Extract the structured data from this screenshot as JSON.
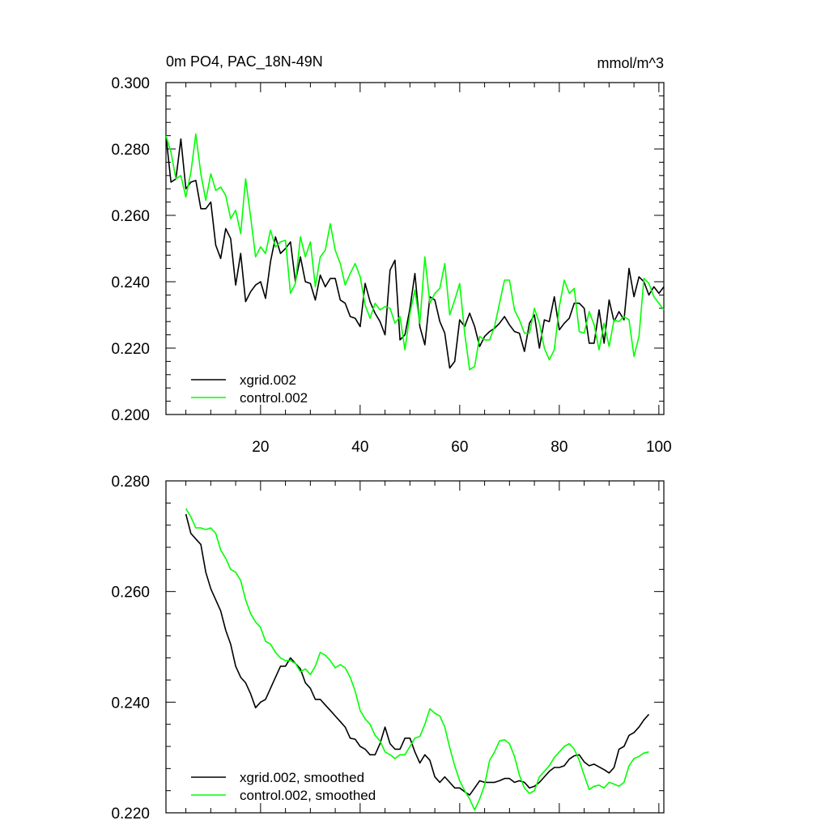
{
  "chart_data": [
    {
      "type": "line",
      "title": "0m PO4, PAC_18N-49N",
      "units": "mmol/m^3",
      "xlim": [
        1,
        101
      ],
      "ylim": [
        0.2,
        0.3
      ],
      "xticks": [
        "20",
        "40",
        "60",
        "80",
        "100"
      ],
      "yticks": [
        "0.200",
        "0.220",
        "0.240",
        "0.260",
        "0.280",
        "0.300"
      ],
      "legend_position": "bottom-left",
      "series": [
        {
          "name": "xgrid.002",
          "color": "#000000",
          "x": [
            1,
            2,
            3,
            4,
            5,
            6,
            7,
            8,
            9,
            10,
            11,
            12,
            13,
            14,
            15,
            16,
            17,
            18,
            19,
            20,
            21,
            22,
            23,
            24,
            25,
            26,
            27,
            28,
            29,
            30,
            31,
            32,
            33,
            34,
            35,
            36,
            37,
            38,
            39,
            40,
            41,
            42,
            43,
            44,
            45,
            46,
            47,
            48,
            49,
            50,
            51,
            52,
            53,
            54,
            55,
            56,
            57,
            58,
            59,
            60,
            61,
            62,
            63,
            64,
            65,
            66,
            67,
            68,
            69,
            70,
            71,
            72,
            73,
            74,
            75,
            76,
            77,
            78,
            79,
            80,
            81,
            82,
            83,
            84,
            85,
            86,
            87,
            88,
            89,
            90,
            91,
            92,
            93,
            94,
            95,
            96,
            97,
            98,
            99,
            100,
            101
          ],
          "y": [
            0.284,
            0.27,
            0.271,
            0.283,
            0.268,
            0.27,
            0.2705,
            0.262,
            0.262,
            0.264,
            0.251,
            0.247,
            0.256,
            0.253,
            0.239,
            0.2485,
            0.234,
            0.237,
            0.239,
            0.24,
            0.235,
            0.246,
            0.2535,
            0.2485,
            0.25,
            0.252,
            0.24,
            0.2475,
            0.24,
            0.2395,
            0.2345,
            0.242,
            0.2385,
            0.241,
            0.241,
            0.2345,
            0.2335,
            0.2295,
            0.229,
            0.2265,
            0.2395,
            0.234,
            0.2305,
            0.228,
            0.224,
            0.2435,
            0.2465,
            0.2225,
            0.224,
            0.232,
            0.2425,
            0.2265,
            0.221,
            0.2355,
            0.2345,
            0.228,
            0.2245,
            0.214,
            0.216,
            0.2285,
            0.2265,
            0.2305,
            0.2265,
            0.2205,
            0.2235,
            0.225,
            0.226,
            0.2275,
            0.2295,
            0.227,
            0.225,
            0.2245,
            0.219,
            0.2275,
            0.23,
            0.22,
            0.2285,
            0.228,
            0.2355,
            0.2255,
            0.2275,
            0.229,
            0.2335,
            0.2335,
            0.232,
            0.2215,
            0.2215,
            0.2315,
            0.2215,
            0.2345,
            0.228,
            0.231,
            0.2285,
            0.244,
            0.2355,
            0.2415,
            0.24,
            0.236,
            0.2385,
            0.2365,
            0.2385
          ]
        },
        {
          "name": "control.002",
          "color": "#00ff00",
          "x": [
            1,
            2,
            3,
            4,
            5,
            6,
            7,
            8,
            9,
            10,
            11,
            12,
            13,
            14,
            15,
            16,
            17,
            18,
            19,
            20,
            21,
            22,
            23,
            24,
            25,
            26,
            27,
            28,
            29,
            30,
            31,
            32,
            33,
            34,
            35,
            36,
            37,
            38,
            39,
            40,
            41,
            42,
            43,
            44,
            45,
            46,
            47,
            48,
            49,
            50,
            51,
            52,
            53,
            54,
            55,
            56,
            57,
            58,
            59,
            60,
            61,
            62,
            63,
            64,
            65,
            66,
            67,
            68,
            69,
            70,
            71,
            72,
            73,
            74,
            75,
            76,
            77,
            78,
            79,
            80,
            81,
            82,
            83,
            84,
            85,
            86,
            87,
            88,
            89,
            90,
            91,
            92,
            93,
            94,
            95,
            96,
            97,
            98,
            99,
            100,
            101
          ],
          "y": [
            0.284,
            0.279,
            0.271,
            0.272,
            0.2655,
            0.273,
            0.2845,
            0.2725,
            0.2645,
            0.2725,
            0.2675,
            0.2685,
            0.266,
            0.259,
            0.2615,
            0.2545,
            0.271,
            0.2595,
            0.2475,
            0.2505,
            0.2485,
            0.2555,
            0.2505,
            0.252,
            0.2525,
            0.2365,
            0.2395,
            0.2535,
            0.2475,
            0.252,
            0.2385,
            0.2475,
            0.2495,
            0.2575,
            0.2495,
            0.2455,
            0.239,
            0.2425,
            0.2455,
            0.2415,
            0.233,
            0.229,
            0.2335,
            0.2315,
            0.2325,
            0.232,
            0.2275,
            0.2295,
            0.2195,
            0.2305,
            0.2375,
            0.2275,
            0.2475,
            0.2335,
            0.2365,
            0.238,
            0.2455,
            0.23,
            0.2345,
            0.2395,
            0.2245,
            0.2135,
            0.2145,
            0.2235,
            0.2225,
            0.2225,
            0.2265,
            0.2335,
            0.2405,
            0.2405,
            0.2315,
            0.2285,
            0.2245,
            0.2245,
            0.232,
            0.2275,
            0.22,
            0.2165,
            0.2195,
            0.2325,
            0.2405,
            0.2365,
            0.238,
            0.225,
            0.2245,
            0.231,
            0.227,
            0.2195,
            0.2275,
            0.2205,
            0.2285,
            0.228,
            0.2295,
            0.2285,
            0.2175,
            0.2235,
            0.241,
            0.2395,
            0.2355,
            0.2335,
            0.2315
          ]
        }
      ]
    },
    {
      "type": "line",
      "title": "",
      "xlim": [
        1,
        101
      ],
      "ylim": [
        0.22,
        0.28
      ],
      "yticks": [
        "0.220",
        "0.240",
        "0.260",
        "0.280"
      ],
      "legend_position": "bottom-left",
      "series": [
        {
          "name": "xgrid.002, smoothed",
          "color": "#000000",
          "x": [
            5,
            6,
            7,
            8,
            9,
            10,
            11,
            12,
            13,
            14,
            15,
            16,
            17,
            18,
            19,
            20,
            21,
            22,
            23,
            24,
            25,
            26,
            27,
            28,
            29,
            30,
            31,
            32,
            33,
            34,
            35,
            36,
            37,
            38,
            39,
            40,
            41,
            42,
            43,
            44,
            45,
            46,
            47,
            48,
            49,
            50,
            51,
            52,
            53,
            54,
            55,
            56,
            57,
            58,
            59,
            60,
            61,
            62,
            63,
            64,
            65,
            66,
            67,
            68,
            69,
            70,
            71,
            72,
            73,
            74,
            75,
            76,
            77,
            78,
            79,
            80,
            81,
            82,
            83,
            84,
            85,
            86,
            87,
            88,
            89,
            90,
            91,
            92,
            93,
            94,
            95,
            96,
            97,
            98
          ],
          "y": [
            0.274,
            0.2705,
            0.2695,
            0.2685,
            0.2635,
            0.2605,
            0.2585,
            0.2565,
            0.253,
            0.2505,
            0.2465,
            0.2445,
            0.2435,
            0.2415,
            0.239,
            0.24,
            0.2405,
            0.2425,
            0.2445,
            0.2465,
            0.2465,
            0.248,
            0.247,
            0.246,
            0.2435,
            0.2425,
            0.2405,
            0.2405,
            0.2395,
            0.2385,
            0.2375,
            0.2365,
            0.2355,
            0.2335,
            0.2333,
            0.232,
            0.2315,
            0.2305,
            0.2305,
            0.2325,
            0.2355,
            0.2325,
            0.2315,
            0.2315,
            0.2335,
            0.2335,
            0.231,
            0.229,
            0.2305,
            0.2295,
            0.2265,
            0.2255,
            0.2265,
            0.2255,
            0.2245,
            0.2245,
            0.2238,
            0.2232,
            0.2245,
            0.2258,
            0.2255,
            0.2255,
            0.2255,
            0.2258,
            0.2262,
            0.2262,
            0.2255,
            0.2258,
            0.2255,
            0.2245,
            0.2248,
            0.2255,
            0.2265,
            0.2275,
            0.2282,
            0.2282,
            0.2285,
            0.2297,
            0.2303,
            0.2305,
            0.2292,
            0.2285,
            0.2288,
            0.2283,
            0.2278,
            0.2272,
            0.2282,
            0.2315,
            0.232,
            0.234,
            0.2345,
            0.2355,
            0.2368,
            0.2378
          ]
        },
        {
          "name": "control.002, smoothed",
          "color": "#00ff00",
          "x": [
            5,
            6,
            7,
            8,
            9,
            10,
            11,
            12,
            13,
            14,
            15,
            16,
            17,
            18,
            19,
            20,
            21,
            22,
            23,
            24,
            25,
            26,
            27,
            28,
            29,
            30,
            31,
            32,
            33,
            34,
            35,
            36,
            37,
            38,
            39,
            40,
            41,
            42,
            43,
            44,
            45,
            46,
            47,
            48,
            49,
            50,
            51,
            52,
            53,
            54,
            55,
            56,
            57,
            58,
            59,
            60,
            61,
            62,
            63,
            64,
            65,
            66,
            67,
            68,
            69,
            70,
            71,
            72,
            73,
            74,
            75,
            76,
            77,
            78,
            79,
            80,
            81,
            82,
            83,
            84,
            85,
            86,
            87,
            88,
            89,
            90,
            91,
            92,
            93,
            94,
            95,
            96,
            97,
            98
          ],
          "y": [
            0.275,
            0.2735,
            0.2715,
            0.2715,
            0.2712,
            0.2715,
            0.2705,
            0.2675,
            0.266,
            0.264,
            0.2635,
            0.262,
            0.2585,
            0.256,
            0.2545,
            0.2535,
            0.251,
            0.2505,
            0.249,
            0.248,
            0.2475,
            0.2475,
            0.247,
            0.2455,
            0.246,
            0.245,
            0.2465,
            0.249,
            0.2485,
            0.2475,
            0.2462,
            0.2468,
            0.2462,
            0.2445,
            0.242,
            0.2385,
            0.237,
            0.236,
            0.234,
            0.233,
            0.231,
            0.2305,
            0.2298,
            0.2305,
            0.2305,
            0.232,
            0.2335,
            0.2338,
            0.236,
            0.2388,
            0.238,
            0.2375,
            0.2355,
            0.2318,
            0.2285,
            0.2258,
            0.224,
            0.2225,
            0.2205,
            0.2225,
            0.225,
            0.2295,
            0.231,
            0.233,
            0.2332,
            0.2325,
            0.2302,
            0.2268,
            0.2245,
            0.2235,
            0.224,
            0.2265,
            0.2275,
            0.2285,
            0.23,
            0.231,
            0.232,
            0.2325,
            0.2315,
            0.2295,
            0.2268,
            0.2242,
            0.2248,
            0.225,
            0.2245,
            0.2255,
            0.2252,
            0.2248,
            0.2255,
            0.2285,
            0.2298,
            0.2302,
            0.2308,
            0.231
          ]
        }
      ]
    }
  ]
}
